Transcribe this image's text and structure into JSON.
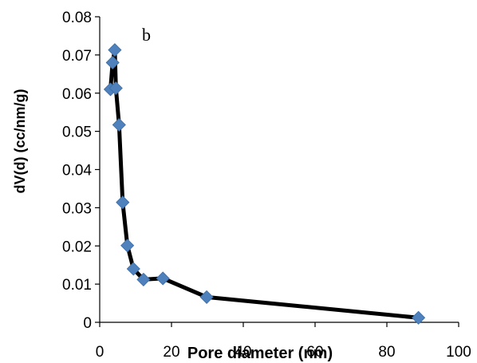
{
  "chart_data": {
    "type": "line",
    "panel_label": "b",
    "xlabel": "Pore diameter (nm)",
    "ylabel": "dV(d) (cc/nm/g)",
    "xlim": [
      0,
      100
    ],
    "ylim": [
      0,
      0.08
    ],
    "x_ticks": [
      0,
      20,
      40,
      60,
      80,
      100
    ],
    "y_ticks": [
      0,
      0.01,
      0.02,
      0.03,
      0.04,
      0.05,
      0.06,
      0.07,
      0.08
    ],
    "x_tick_labels": [
      "0",
      "20",
      "40",
      "60",
      "80",
      "100"
    ],
    "y_tick_labels": [
      "0",
      "0.01",
      "0.02",
      "0.03",
      "0.04",
      "0.05",
      "0.06",
      "0.07",
      "0.08"
    ],
    "grid": false,
    "legend": "none",
    "series": [
      {
        "line_color": "#000000",
        "marker": "diamond",
        "marker_color": "#4F81BD",
        "x": [
          3.0,
          3.6,
          4.2,
          4.5,
          5.4,
          6.4,
          7.7,
          9.4,
          12.2,
          17.6,
          29.8,
          88.8
        ],
        "y": [
          0.061,
          0.068,
          0.0713,
          0.0613,
          0.0517,
          0.0314,
          0.0201,
          0.014,
          0.0112,
          0.0115,
          0.0066,
          0.0012
        ]
      }
    ]
  }
}
